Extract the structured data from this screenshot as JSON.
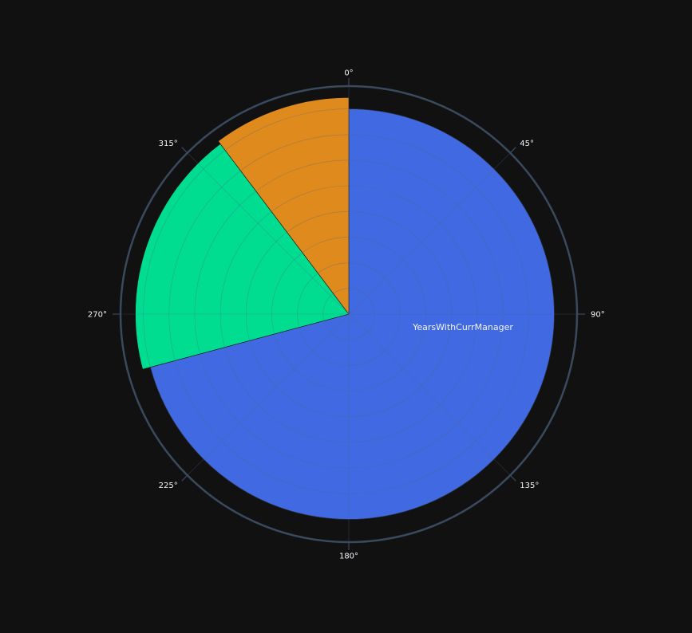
{
  "chart_data": {
    "type": "barpolar",
    "angular_axis": {
      "direction": "clockwise",
      "rotation": "90deg (0° at top)",
      "tick_labels": [
        "0°",
        "45°",
        "90°",
        "135°",
        "180°",
        "225°",
        "270°",
        "315°"
      ]
    },
    "radial_axis": {
      "range": [
        0,
        1
      ],
      "gridlines": 8,
      "tick_labels_visible": false
    },
    "series": [
      {
        "name": "YearsWithCurrManager",
        "theta_start": 0,
        "theta_end": 255,
        "r": 0.9,
        "color": "#4169e1"
      },
      {
        "theta_start": 255,
        "theta_end": 323,
        "r": 0.935,
        "color": "#00dd90"
      },
      {
        "theta_start": 323,
        "theta_end": 360,
        "r": 0.95,
        "color": "#df8a1c"
      }
    ],
    "inside_labels": [
      {
        "text": "YearsWithCurrManager",
        "series": 0
      }
    ],
    "background": "#111111",
    "polar_background": "#111111",
    "grid_color": "#506784",
    "outer_ring_color": "#3a4a5e"
  }
}
